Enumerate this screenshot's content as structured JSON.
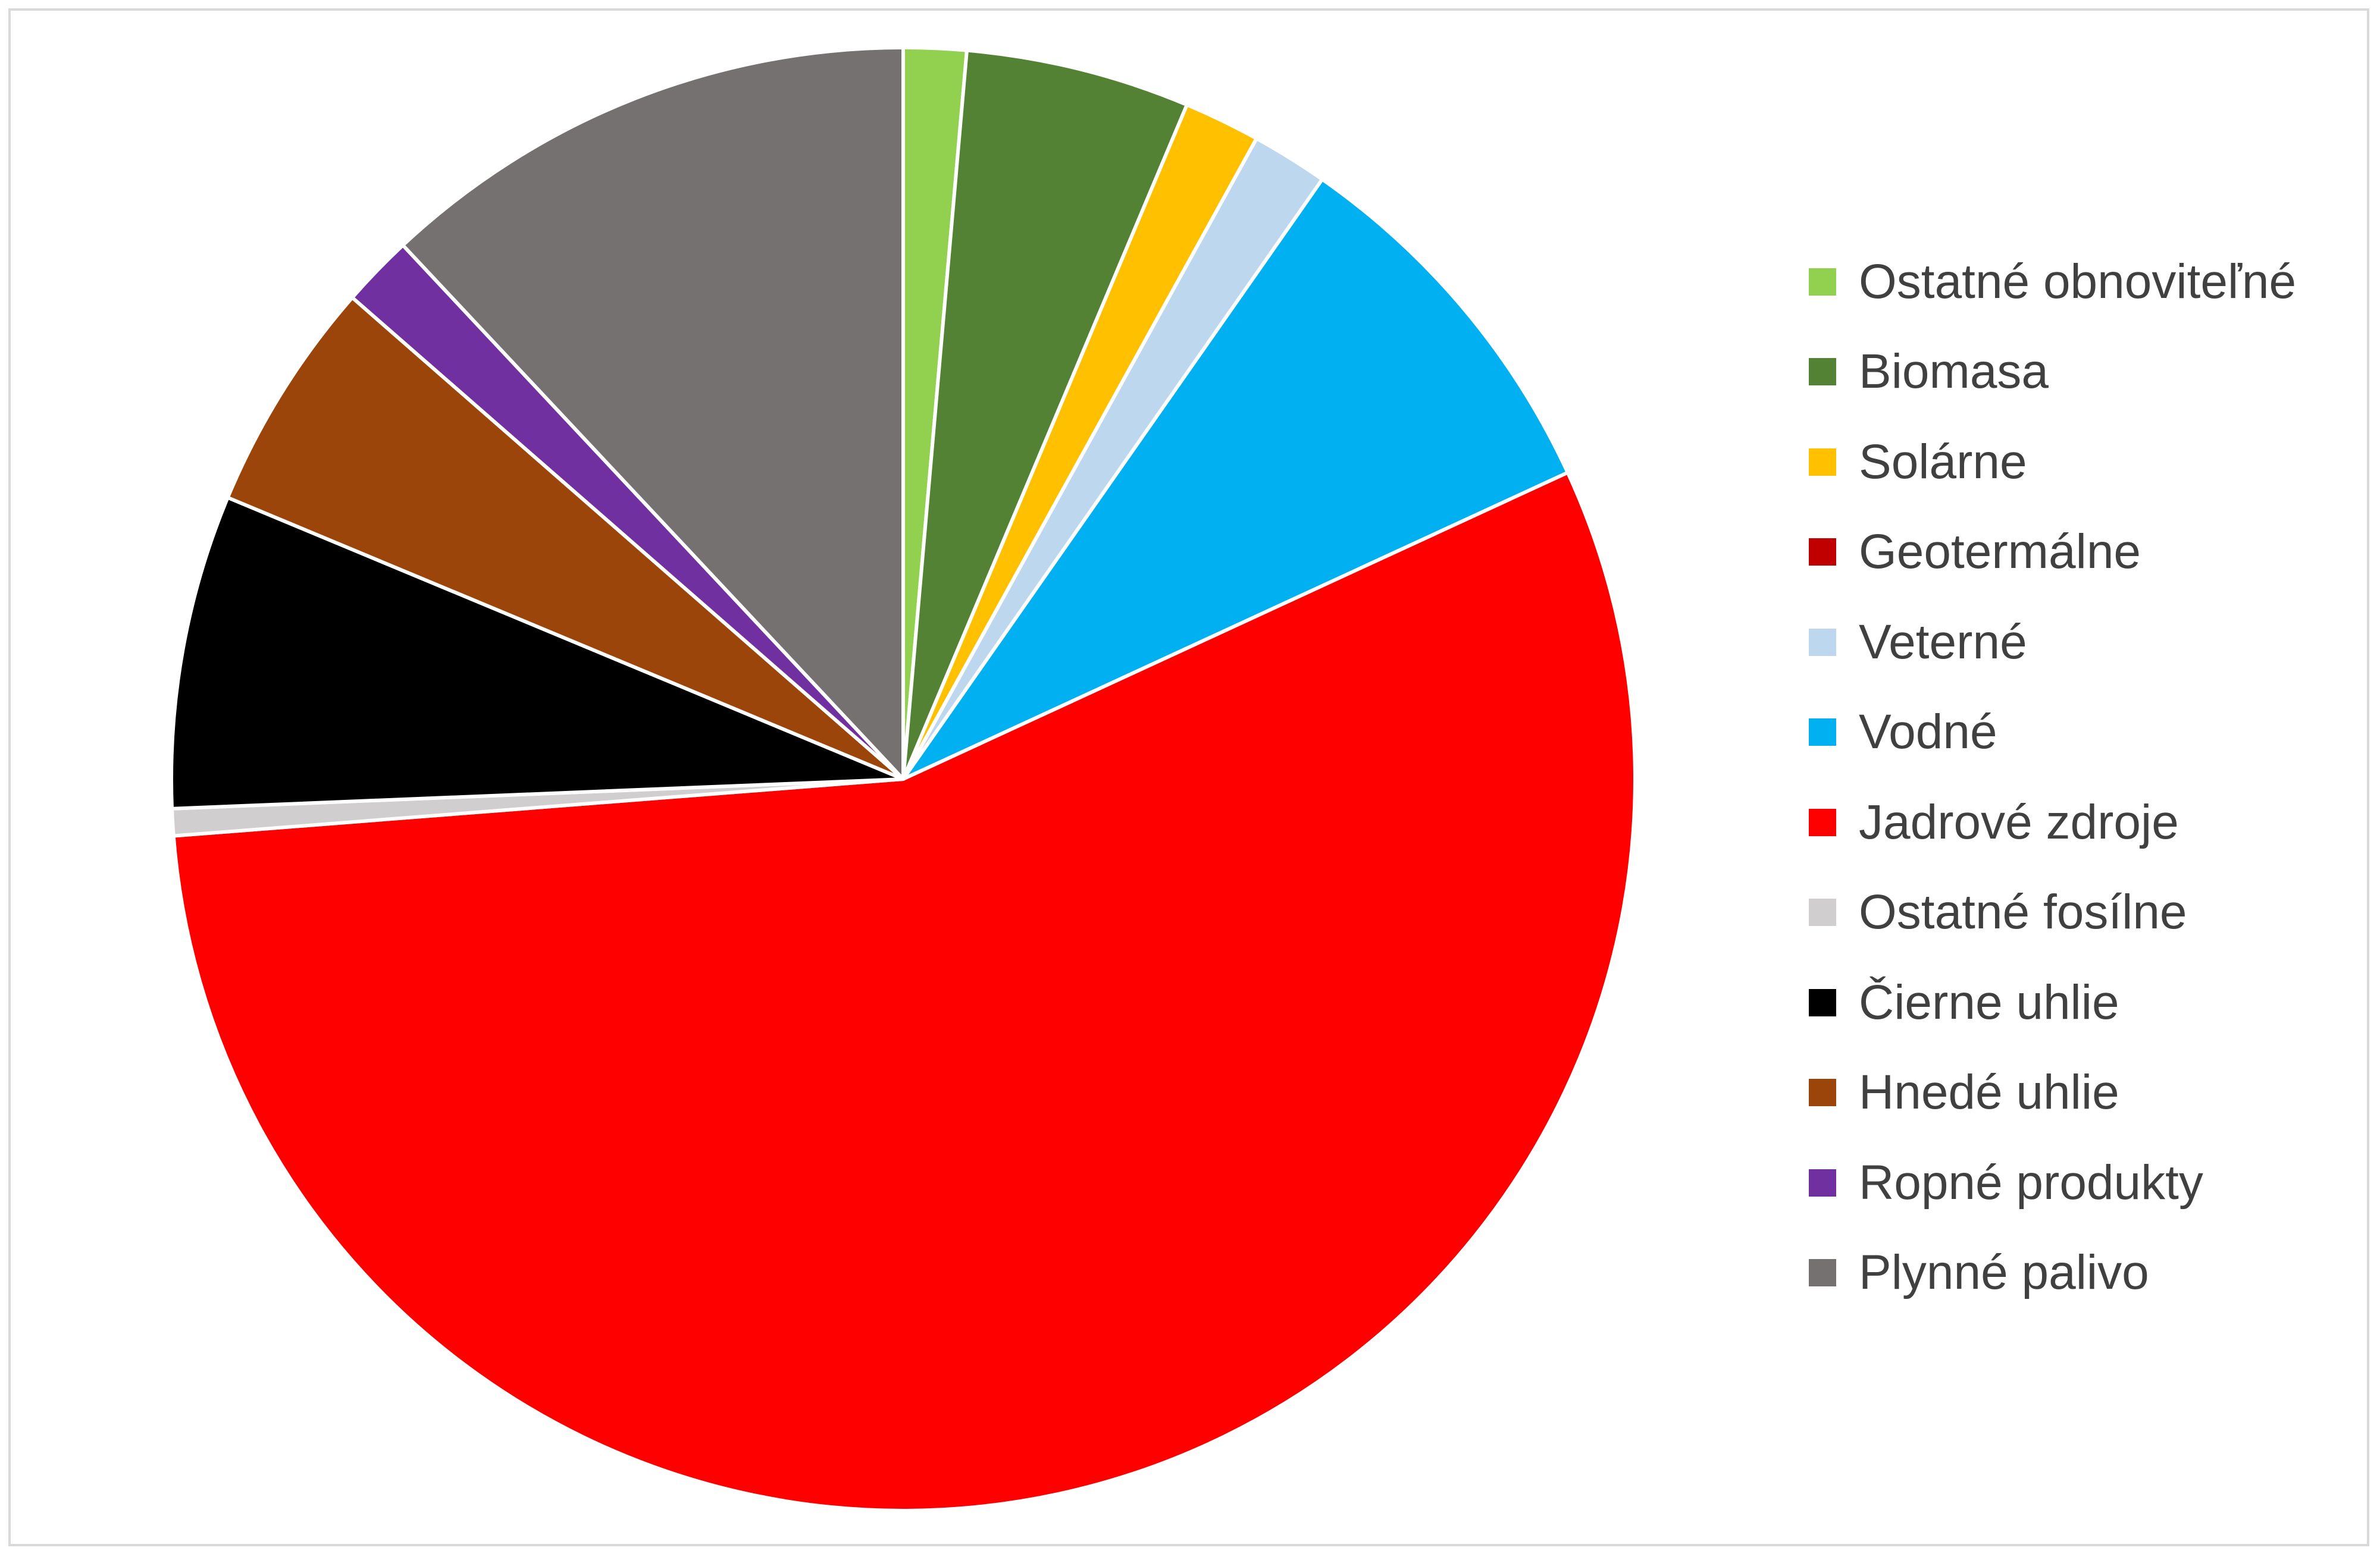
{
  "chart_data": {
    "type": "pie",
    "title": "",
    "legend_position": "right",
    "start_angle_deg": 0,
    "direction": "clockwise",
    "slices": [
      {
        "label": "Ostatné obnoviteľné",
        "value": 1.4,
        "color": "#92d050"
      },
      {
        "label": "Biomasa",
        "value": 5.0,
        "color": "#548235"
      },
      {
        "label": "Solárne",
        "value": 1.7,
        "color": "#ffc000"
      },
      {
        "label": "Geotermálne",
        "value": 0.0,
        "color": "#c00000"
      },
      {
        "label": "Veterné",
        "value": 1.7,
        "color": "#bdd7ee"
      },
      {
        "label": "Vodné",
        "value": 8.5,
        "color": "#00b0f0"
      },
      {
        "label": "Jadrové zdroje",
        "value": 56.2,
        "color": "#ff0000"
      },
      {
        "label": "Ostatné fosílne",
        "value": 0.6,
        "color": "#d0cece"
      },
      {
        "label": "Čierne uhlie",
        "value": 7.0,
        "color": "#000000"
      },
      {
        "label": "Hnedé uhlie",
        "value": 5.2,
        "color": "#9c450b"
      },
      {
        "label": "Ropné produkty",
        "value": 1.6,
        "color": "#7030a0"
      },
      {
        "label": "Plynné palivo",
        "value": 12.1,
        "color": "#767171"
      }
    ]
  }
}
